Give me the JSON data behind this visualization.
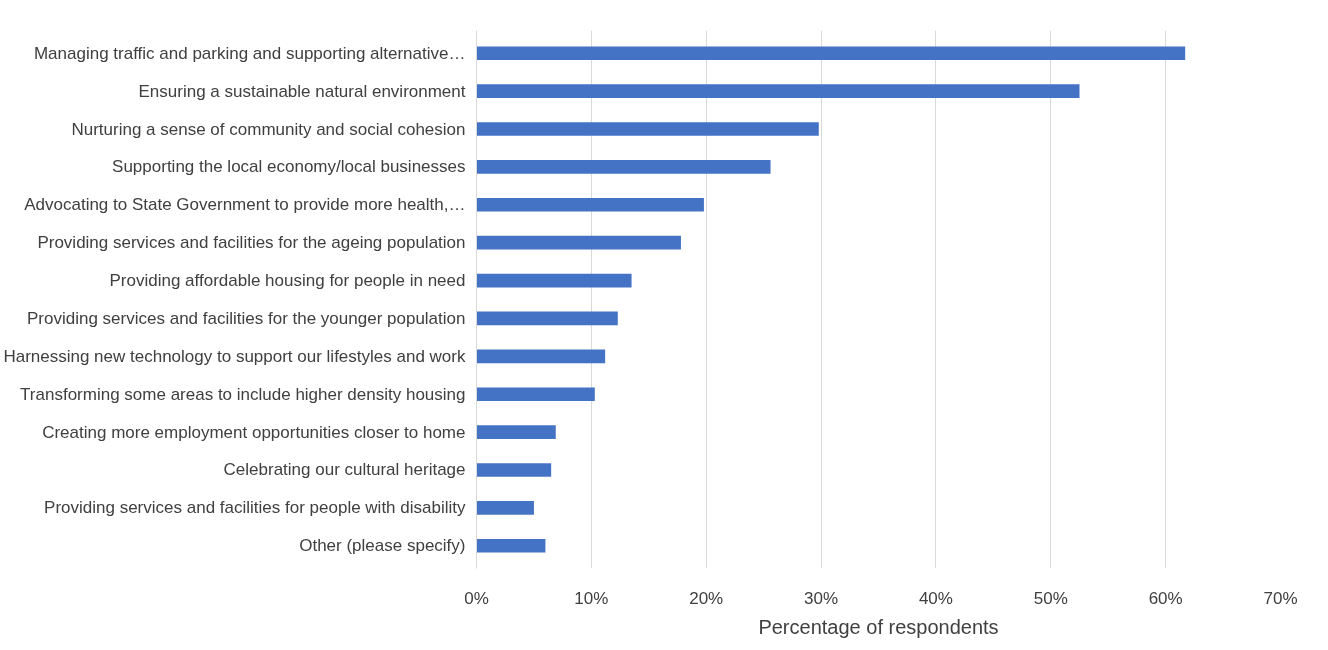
{
  "chart_data": {
    "type": "bar",
    "orientation": "horizontal",
    "xlabel": "Percentage of respondents",
    "categories": [
      "Managing traffic and parking and supporting alternative…",
      "Ensuring a sustainable natural environment",
      "Nurturing a sense of community and social cohesion",
      "Supporting the local economy/local businesses",
      "Advocating to State Government to provide more health,…",
      "Providing services and facilities for the ageing population",
      "Providing affordable housing for people in need",
      "Providing services and facilities for the younger population",
      "Harnessing new technology to support our lifestyles and work",
      "Transforming some areas to include higher density housing",
      "Creating more employment opportunities closer to home",
      "Celebrating our cultural heritage",
      "Providing services and facilities for people with disability",
      "Other (please specify)"
    ],
    "values": [
      61.7,
      52.5,
      29.8,
      25.6,
      19.8,
      17.8,
      13.5,
      12.3,
      11.2,
      10.3,
      6.9,
      6.5,
      5.0,
      6.0
    ],
    "color": "#4472c4",
    "xlim": [
      0,
      70
    ],
    "xticks": [
      {
        "value": 0,
        "label": "0%"
      },
      {
        "value": 10,
        "label": "10%"
      },
      {
        "value": 20,
        "label": "20%"
      },
      {
        "value": 30,
        "label": "30%"
      },
      {
        "value": 40,
        "label": "40%"
      },
      {
        "value": 50,
        "label": "50%"
      },
      {
        "value": 60,
        "label": "60%"
      },
      {
        "value": 70,
        "label": "70%"
      }
    ],
    "grid": "x"
  }
}
